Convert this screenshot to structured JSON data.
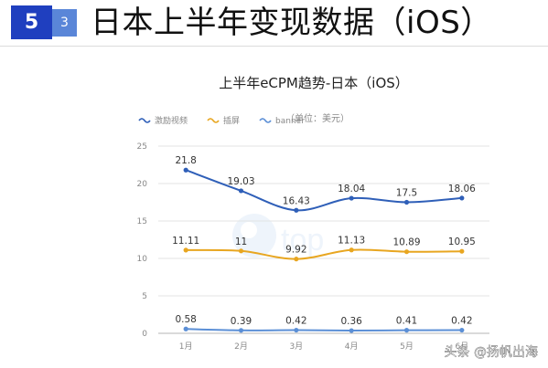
{
  "header": {
    "section_number": "5",
    "sub_number": "3",
    "title": "日本上半年变现数据（iOS）"
  },
  "chart_data": {
    "type": "line",
    "title": "上半年eCPM趋势-日本（iOS）",
    "legend": [
      "激励视频",
      "插屏",
      "banner"
    ],
    "unit_note": "（单位：美元）",
    "legend_position": "top-left",
    "categories": [
      "1月",
      "2月",
      "3月",
      "4月",
      "5月",
      "6月"
    ],
    "ylim": [
      0,
      25
    ],
    "yticks": [
      0,
      5,
      10,
      15,
      20,
      25
    ],
    "grid": true,
    "series": [
      {
        "name": "激励视频",
        "color": "#2f5fb8",
        "values": [
          21.8,
          19.03,
          16.43,
          18.04,
          17.5,
          18.06
        ],
        "labels": [
          "21.8",
          "19.03",
          "16.43",
          "18.04",
          "17.5",
          "18.06"
        ]
      },
      {
        "name": "插屏",
        "color": "#e8a620",
        "values": [
          11.11,
          11,
          9.92,
          11.13,
          10.89,
          10.95
        ],
        "labels": [
          "11.11",
          "11",
          "9.92",
          "11.13",
          "10.89",
          "10.95"
        ]
      },
      {
        "name": "banner",
        "color": "#5b8fd6",
        "values": [
          0.58,
          0.39,
          0.42,
          0.36,
          0.41,
          0.42
        ],
        "labels": [
          "0.58",
          "0.39",
          "0.42",
          "0.36",
          "0.41",
          "0.42"
        ]
      }
    ]
  },
  "watermark": {
    "brand_text": "top",
    "credit": "头条 @扬帆出海"
  }
}
